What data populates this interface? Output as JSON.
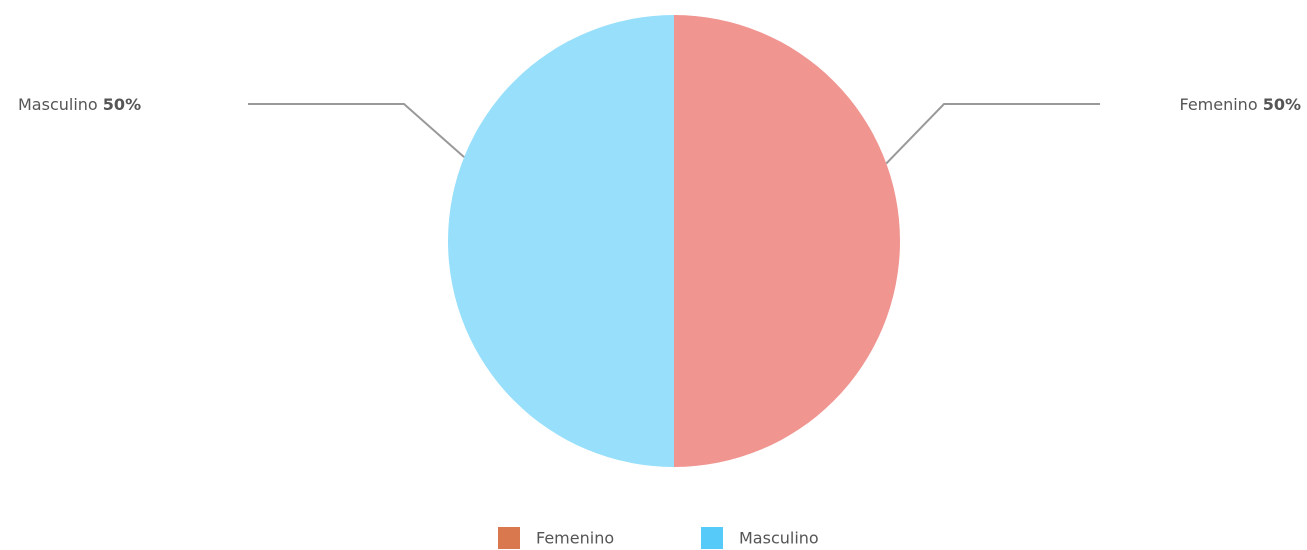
{
  "chart_data": {
    "type": "pie",
    "categories": [
      "Femenino",
      "Masculino"
    ],
    "values": [
      50,
      50
    ],
    "value_labels": [
      "50%",
      "50%"
    ],
    "colors": [
      "#f09590",
      "#97dffb"
    ],
    "legend_colors": [
      "#d9784f",
      "#56cbf9"
    ]
  }
}
